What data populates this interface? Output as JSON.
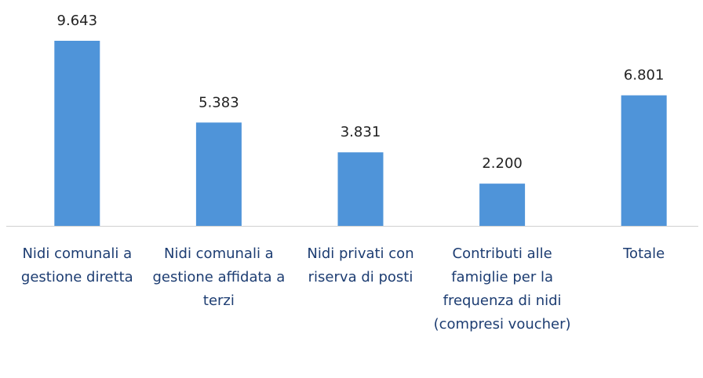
{
  "chart_data": {
    "type": "bar",
    "categories": [
      "Nidi comunali a gestione diretta",
      "Nidi comunali a gestione affidata a terzi",
      "Nidi privati con riserva di posti",
      "Contributi alle famiglie per la frequenza di nidi (compresi voucher)",
      "Totale"
    ],
    "values": [
      9643,
      5383,
      3831,
      2200,
      6801
    ],
    "value_labels": [
      "9.643",
      "5.383",
      "3.831",
      "2.200",
      "6.801"
    ],
    "color": "#4f94d9"
  }
}
